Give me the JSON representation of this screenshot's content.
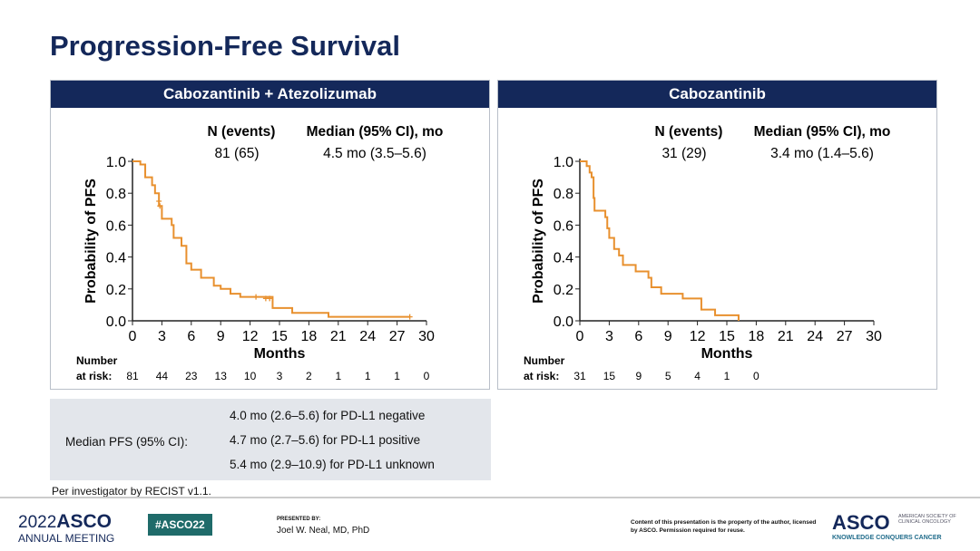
{
  "title": "Progression-Free Survival",
  "chart_data": [
    {
      "type": "line",
      "title": "Cabozantinib + Atezolizumab",
      "xlabel": "Months",
      "ylabel": "Probability of PFS",
      "xlim": [
        0,
        30
      ],
      "ylim": [
        0,
        1.0
      ],
      "xticks": [
        "0",
        "3",
        "6",
        "9",
        "12",
        "15",
        "18",
        "21",
        "24",
        "27",
        "30"
      ],
      "yticks": [
        "0.0",
        "0.2",
        "0.4",
        "0.6",
        "0.8",
        "1.0"
      ],
      "color": "#e8902e",
      "n_label": "N (events)",
      "median_label": "Median (95% CI), mo",
      "n_value": "81 (65)",
      "median_value": "4.5 mo (3.5–5.6)",
      "risk_label_1": "Number",
      "risk_label_2": "at risk:",
      "at_risk": [
        "81",
        "44",
        "23",
        "13",
        "10",
        "3",
        "2",
        "1",
        "1",
        "1",
        "0"
      ],
      "steps": [
        [
          0,
          1.0
        ],
        [
          0.8,
          0.98
        ],
        [
          1.3,
          0.9
        ],
        [
          2.0,
          0.85
        ],
        [
          2.3,
          0.8
        ],
        [
          2.7,
          0.72
        ],
        [
          3.0,
          0.64
        ],
        [
          4.0,
          0.6
        ],
        [
          4.2,
          0.52
        ],
        [
          5.0,
          0.47
        ],
        [
          5.5,
          0.36
        ],
        [
          6.0,
          0.32
        ],
        [
          7.0,
          0.27
        ],
        [
          8.3,
          0.22
        ],
        [
          9.0,
          0.2
        ],
        [
          10.0,
          0.17
        ],
        [
          11.0,
          0.15
        ],
        [
          14.3,
          0.08
        ],
        [
          16.3,
          0.05
        ],
        [
          20.0,
          0.025
        ],
        [
          28.3,
          0.025
        ]
      ],
      "censored": [
        [
          2.7,
          0.75
        ],
        [
          2.8,
          0.72
        ],
        [
          12.6,
          0.15
        ],
        [
          13.6,
          0.14
        ],
        [
          14.0,
          0.14
        ],
        [
          28.3,
          0.025
        ]
      ]
    },
    {
      "type": "line",
      "title": "Cabozantinib",
      "xlabel": "Months",
      "ylabel": "Probability of PFS",
      "xlim": [
        0,
        30
      ],
      "ylim": [
        0,
        1.0
      ],
      "xticks": [
        "0",
        "3",
        "6",
        "9",
        "12",
        "15",
        "18",
        "21",
        "24",
        "27",
        "30"
      ],
      "yticks": [
        "0.0",
        "0.2",
        "0.4",
        "0.6",
        "0.8",
        "1.0"
      ],
      "color": "#e8902e",
      "n_label": "N (events)",
      "median_label": "Median (95% CI), mo",
      "n_value": "31 (29)",
      "median_value": "3.4 mo (1.4–5.6)",
      "risk_label_1": "Number",
      "risk_label_2": "at risk:",
      "at_risk": [
        "31",
        "15",
        "9",
        "5",
        "4",
        "1",
        "0"
      ],
      "steps": [
        [
          0,
          1.0
        ],
        [
          0.7,
          0.97
        ],
        [
          1.0,
          0.93
        ],
        [
          1.2,
          0.9
        ],
        [
          1.4,
          0.77
        ],
        [
          1.5,
          0.69
        ],
        [
          2.6,
          0.65
        ],
        [
          2.8,
          0.58
        ],
        [
          3.0,
          0.52
        ],
        [
          3.5,
          0.45
        ],
        [
          4.0,
          0.41
        ],
        [
          4.4,
          0.35
        ],
        [
          5.7,
          0.31
        ],
        [
          7.0,
          0.27
        ],
        [
          7.3,
          0.21
        ],
        [
          8.3,
          0.17
        ],
        [
          10.5,
          0.14
        ],
        [
          12.4,
          0.07
        ],
        [
          13.8,
          0.035
        ],
        [
          16.2,
          0.0
        ]
      ],
      "censored": []
    }
  ],
  "subgroups": {
    "label": "Median PFS (95% CI):",
    "items": [
      "4.0 mo (2.6–5.6) for PD-L1 negative",
      "4.7 mo (2.7–5.6) for PD-L1 positive",
      "5.4 mo (2.9–10.9) for PD-L1 unknown"
    ]
  },
  "note": "Per investigator by RECIST v1.1.",
  "footer": {
    "meeting_year": "2022",
    "meeting_brand": "ASCO",
    "meeting_sub": "ANNUAL MEETING",
    "hashtag": "#ASCO22",
    "presented_by": "PRESENTED BY:",
    "presenter": "Joel W. Neal, MD, PhD",
    "copyright": "Content of this presentation is the property of the author, licensed by ASCO. Permission required for reuse.",
    "org": "ASCO",
    "org_full": "AMERICAN SOCIETY OF CLINICAL ONCOLOGY",
    "tagline": "KNOWLEDGE CONQUERS CANCER",
    "accent": "#14285a",
    "hashtag_bg": "#1f6b6a"
  }
}
